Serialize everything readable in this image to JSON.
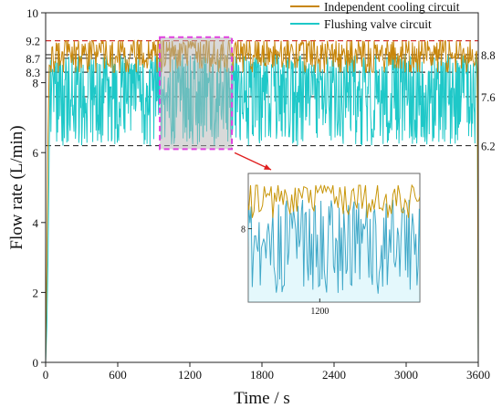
{
  "chart_data": {
    "type": "line",
    "xlabel": "Time / s",
    "ylabel": "Flow rate (L/min)",
    "xlim": [
      0,
      3600
    ],
    "ylim": [
      0,
      10
    ],
    "xticks": [
      0,
      600,
      1200,
      1800,
      2400,
      3000,
      3600
    ],
    "yticks": [
      0,
      2,
      4,
      6,
      8,
      10
    ],
    "grid": false,
    "legend": "top-right",
    "series": [
      {
        "name": "Independent cooling circuit",
        "color": "#c8860a",
        "steady_range": [
          8.3,
          9.2
        ],
        "steady_mean": 8.7,
        "points": [
          [
            0,
            0
          ],
          [
            10,
            3.0
          ],
          [
            20,
            6.5
          ],
          [
            30,
            8.5
          ],
          [
            40,
            8.7
          ],
          [
            3595,
            8.7
          ],
          [
            3600,
            0
          ]
        ]
      },
      {
        "name": "Flushing valve circuit",
        "color": "#1ec8c8",
        "steady_range": [
          6.2,
          8.8
        ],
        "steady_mean": 7.6,
        "points": [
          [
            0,
            0
          ],
          [
            10,
            1.0
          ],
          [
            20,
            3.0
          ],
          [
            30,
            6.2
          ],
          [
            40,
            7.6
          ],
          [
            3595,
            7.6
          ],
          [
            3600,
            0
          ]
        ]
      }
    ],
    "reference_lines": [
      {
        "y": 9.2,
        "side": "left",
        "color": "#d03030"
      },
      {
        "y": 8.7,
        "side": "left",
        "color": "#333333"
      },
      {
        "y": 8.3,
        "side": "left",
        "color": "#333333"
      },
      {
        "y": 8.8,
        "side": "right",
        "color": "#333333"
      },
      {
        "y": 7.6,
        "side": "right",
        "color": "#333333"
      },
      {
        "y": 6.2,
        "side": "right",
        "color": "#333333"
      }
    ],
    "highlight": {
      "x_range": [
        950,
        1550
      ],
      "y_range": [
        6.1,
        9.3
      ],
      "color": "#e040e0"
    },
    "inset": {
      "x_range": [
        950,
        1550
      ],
      "xticks": [
        1200
      ],
      "yticks": [
        8
      ]
    }
  }
}
